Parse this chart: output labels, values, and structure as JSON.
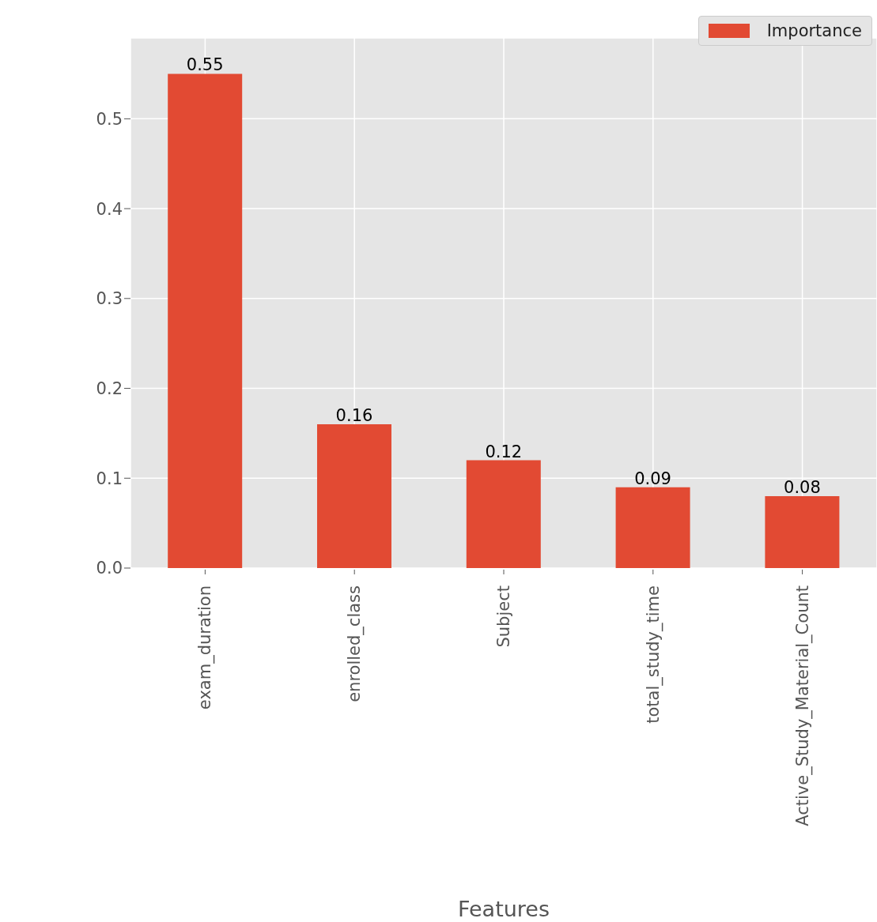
{
  "chart_data": {
    "type": "bar",
    "xlabel": "Features",
    "categories": [
      "exam_duration",
      "enrolled_class",
      "Subject",
      "total_study_time",
      "Active_Study_Material_Count"
    ],
    "series": [
      {
        "name": "Importance",
        "color": "#e24a33",
        "values": [
          0.55,
          0.16,
          0.12,
          0.09,
          0.08
        ]
      }
    ],
    "ylim": [
      0,
      0.59
    ],
    "yticks": [
      {
        "value": 0,
        "label": "0.0"
      },
      {
        "value": 0.1,
        "label": "0.1"
      },
      {
        "value": 0.2,
        "label": "0.2"
      },
      {
        "value": 0.3,
        "label": "0.3"
      },
      {
        "value": 0.4,
        "label": "0.4"
      },
      {
        "value": 0.5,
        "label": "0.5"
      }
    ],
    "grid": true,
    "legend": "top right",
    "data_labels": true
  }
}
